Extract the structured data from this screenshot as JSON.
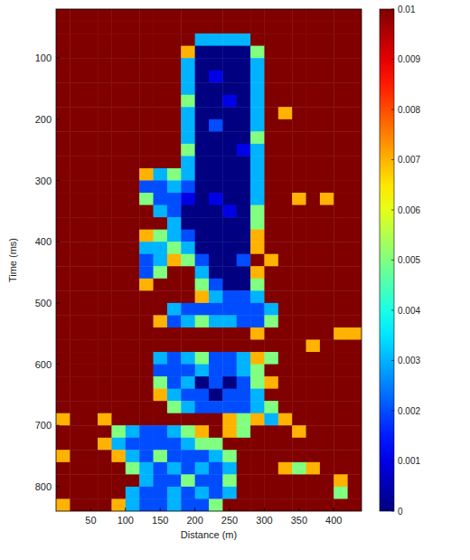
{
  "chart_data": {
    "type": "heatmap",
    "x_label": "Distance (m)",
    "y_label": "Time (ms)",
    "xlim": [
      0,
      440
    ],
    "ylim": [
      20,
      840
    ],
    "xticks": [
      50,
      100,
      150,
      200,
      250,
      300,
      350,
      400
    ],
    "yticks": [
      100,
      200,
      300,
      400,
      500,
      600,
      700,
      800
    ],
    "x": [
      10,
      30,
      50,
      70,
      90,
      110,
      130,
      150,
      170,
      190,
      210,
      230,
      250,
      270,
      290,
      310,
      330,
      350,
      370,
      390,
      410,
      430
    ],
    "y": [
      30,
      50,
      70,
      90,
      110,
      130,
      150,
      170,
      190,
      210,
      230,
      250,
      270,
      290,
      310,
      330,
      350,
      370,
      390,
      410,
      430,
      450,
      470,
      490,
      510,
      530,
      550,
      570,
      590,
      610,
      630,
      650,
      670,
      690,
      710,
      730,
      750,
      770,
      790,
      810,
      830
    ],
    "cells": [
      [
        0.01,
        0.01,
        0.01,
        0.01,
        0.01,
        0.01,
        0.01,
        0.01,
        0.01,
        0.01,
        0.01,
        0.01,
        0.01,
        0.01,
        0.01,
        0.01,
        0.01,
        0.01,
        0.01,
        0.01,
        0.01,
        0.01
      ],
      [
        0.01,
        0.01,
        0.01,
        0.01,
        0.01,
        0.01,
        0.01,
        0.01,
        0.01,
        0.01,
        0.01,
        0.01,
        0.01,
        0.01,
        0.01,
        0.01,
        0.01,
        0.01,
        0.01,
        0.01,
        0.01,
        0.01
      ],
      [
        0.01,
        0.01,
        0.01,
        0.01,
        0.01,
        0.01,
        0.01,
        0.01,
        0.01,
        0.01,
        0.003,
        0.003,
        0.003,
        0.003,
        0.01,
        0.01,
        0.01,
        0.01,
        0.01,
        0.01,
        0.01,
        0.01
      ],
      [
        0.01,
        0.01,
        0.01,
        0.01,
        0.01,
        0.01,
        0.01,
        0.01,
        0.01,
        0.007,
        0,
        0,
        0,
        0,
        0.005,
        0.01,
        0.01,
        0.01,
        0.01,
        0.01,
        0.01,
        0.01
      ],
      [
        0.01,
        0.01,
        0.01,
        0.01,
        0.01,
        0.01,
        0.01,
        0.01,
        0.01,
        0.003,
        0,
        0,
        0,
        0,
        0.003,
        0.01,
        0.01,
        0.01,
        0.01,
        0.01,
        0.01,
        0.01
      ],
      [
        0.01,
        0.01,
        0.01,
        0.01,
        0.01,
        0.01,
        0.01,
        0.01,
        0.01,
        0.003,
        0,
        0.001,
        0,
        0,
        0.003,
        0.01,
        0.01,
        0.01,
        0.01,
        0.01,
        0.01,
        0.01
      ],
      [
        0.01,
        0.01,
        0.01,
        0.01,
        0.01,
        0.01,
        0.01,
        0.01,
        0.01,
        0.003,
        0,
        0,
        0,
        0,
        0.003,
        0.01,
        0.01,
        0.01,
        0.01,
        0.01,
        0.01,
        0.01
      ],
      [
        0.01,
        0.01,
        0.01,
        0.01,
        0.01,
        0.01,
        0.01,
        0.01,
        0.01,
        0.005,
        0,
        0,
        0.001,
        0,
        0.003,
        0.01,
        0.01,
        0.01,
        0.01,
        0.01,
        0.01,
        0.01
      ],
      [
        0.01,
        0.01,
        0.01,
        0.01,
        0.01,
        0.01,
        0.01,
        0.01,
        0.01,
        0.003,
        0,
        0,
        0,
        0,
        0.003,
        0.01,
        0.007,
        0.01,
        0.01,
        0.01,
        0.01,
        0.01
      ],
      [
        0.01,
        0.01,
        0.01,
        0.01,
        0.01,
        0.01,
        0.01,
        0.01,
        0.01,
        0.003,
        0,
        0.002,
        0,
        0,
        0.003,
        0.01,
        0.01,
        0.01,
        0.01,
        0.01,
        0.01,
        0.01
      ],
      [
        0.01,
        0.01,
        0.01,
        0.01,
        0.01,
        0.01,
        0.01,
        0.01,
        0.01,
        0.003,
        0,
        0,
        0,
        0,
        0.005,
        0.01,
        0.01,
        0.01,
        0.01,
        0.01,
        0.01,
        0.01
      ],
      [
        0.01,
        0.01,
        0.01,
        0.01,
        0.01,
        0.01,
        0.01,
        0.01,
        0.01,
        0.005,
        0,
        0,
        0,
        0.001,
        0.003,
        0.01,
        0.01,
        0.01,
        0.01,
        0.01,
        0.01,
        0.01
      ],
      [
        0.01,
        0.01,
        0.01,
        0.01,
        0.01,
        0.01,
        0.01,
        0.01,
        0.01,
        0.003,
        0,
        0,
        0,
        0,
        0.003,
        0.01,
        0.01,
        0.01,
        0.01,
        0.01,
        0.01,
        0.01
      ],
      [
        0.01,
        0.01,
        0.01,
        0.01,
        0.01,
        0.01,
        0.007,
        0.003,
        0.005,
        0.003,
        0,
        0,
        0,
        0,
        0.003,
        0.01,
        0.01,
        0.01,
        0.01,
        0.01,
        0.01,
        0.01
      ],
      [
        0.01,
        0.01,
        0.01,
        0.01,
        0.01,
        0.01,
        0.002,
        0.002,
        0.003,
        0.002,
        0,
        0,
        0,
        0,
        0.003,
        0.01,
        0.01,
        0.01,
        0.01,
        0.01,
        0.01,
        0.01
      ],
      [
        0.01,
        0.01,
        0.01,
        0.01,
        0.01,
        0.01,
        0.005,
        0.002,
        0.002,
        0.001,
        0,
        0.001,
        0,
        0,
        0.003,
        0.01,
        0.01,
        0.007,
        0.01,
        0.007,
        0.01,
        0.01
      ],
      [
        0.01,
        0.01,
        0.01,
        0.01,
        0.01,
        0.01,
        0.01,
        0.003,
        0.002,
        0,
        0,
        0,
        0.001,
        0,
        0.005,
        0.01,
        0.01,
        0.01,
        0.01,
        0.01,
        0.01,
        0.01
      ],
      [
        0.01,
        0.01,
        0.01,
        0.01,
        0.01,
        0.01,
        0.01,
        0.01,
        0.003,
        0,
        0,
        0,
        0,
        0,
        0.005,
        0.01,
        0.01,
        0.01,
        0.01,
        0.01,
        0.01,
        0.01
      ],
      [
        0.01,
        0.01,
        0.01,
        0.01,
        0.01,
        0.01,
        0.007,
        0.005,
        0.003,
        0.002,
        0,
        0,
        0,
        0,
        0.007,
        0.01,
        0.01,
        0.01,
        0.01,
        0.01,
        0.01,
        0.01
      ],
      [
        0.01,
        0.01,
        0.01,
        0.01,
        0.01,
        0.01,
        0.003,
        0.003,
        0.005,
        0.003,
        0,
        0,
        0,
        0,
        0.007,
        0.01,
        0.01,
        0.01,
        0.01,
        0.01,
        0.01,
        0.01
      ],
      [
        0.01,
        0.01,
        0.01,
        0.01,
        0.01,
        0.01,
        0.002,
        0.003,
        0.007,
        0.005,
        0.002,
        0,
        0,
        0.002,
        0.01,
        0.007,
        0.01,
        0.01,
        0.01,
        0.01,
        0.01,
        0.01
      ],
      [
        0.01,
        0.01,
        0.01,
        0.01,
        0.01,
        0.01,
        0.002,
        0.005,
        0.01,
        0.01,
        0.003,
        0,
        0,
        0,
        0.007,
        0.01,
        0.01,
        0.01,
        0.01,
        0.01,
        0.01,
        0.01
      ],
      [
        0.01,
        0.01,
        0.01,
        0.01,
        0.01,
        0.01,
        0.007,
        0.01,
        0.01,
        0.01,
        0.005,
        0.002,
        0,
        0,
        0.005,
        0.01,
        0.01,
        0.01,
        0.01,
        0.01,
        0.01,
        0.01
      ],
      [
        0.01,
        0.01,
        0.01,
        0.01,
        0.01,
        0.01,
        0.01,
        0.01,
        0.01,
        0.01,
        0.007,
        0.003,
        0.002,
        0.002,
        0.003,
        0.01,
        0.01,
        0.01,
        0.01,
        0.01,
        0.01,
        0.01
      ],
      [
        0.01,
        0.01,
        0.01,
        0.01,
        0.01,
        0.01,
        0.01,
        0.01,
        0.003,
        0.002,
        0.002,
        0.002,
        0.002,
        0.002,
        0.002,
        0.003,
        0.01,
        0.01,
        0.01,
        0.01,
        0.01,
        0.01
      ],
      [
        0.01,
        0.01,
        0.01,
        0.01,
        0.01,
        0.01,
        0.01,
        0.007,
        0.002,
        0.003,
        0.005,
        0.003,
        0.003,
        0.002,
        0.002,
        0.005,
        0.01,
        0.01,
        0.01,
        0.01,
        0.01,
        0.01
      ],
      [
        0.01,
        0.01,
        0.01,
        0.01,
        0.01,
        0.01,
        0.01,
        0.01,
        0.01,
        0.01,
        0.01,
        0.01,
        0.01,
        0.01,
        0.007,
        0.01,
        0.01,
        0.01,
        0.01,
        0.01,
        0.007,
        0.007
      ],
      [
        0.01,
        0.01,
        0.01,
        0.01,
        0.01,
        0.01,
        0.01,
        0.01,
        0.01,
        0.01,
        0.01,
        0.01,
        0.01,
        0.01,
        0.01,
        0.01,
        0.01,
        0.01,
        0.007,
        0.01,
        0.01,
        0.01
      ],
      [
        0.01,
        0.01,
        0.01,
        0.01,
        0.01,
        0.01,
        0.01,
        0.003,
        0.002,
        0.003,
        0.005,
        0.002,
        0.002,
        0.003,
        0.007,
        0.005,
        0.01,
        0.01,
        0.01,
        0.01,
        0.01,
        0.01
      ],
      [
        0.01,
        0.01,
        0.01,
        0.01,
        0.01,
        0.01,
        0.01,
        0.002,
        0.002,
        0.002,
        0.003,
        0.002,
        0.002,
        0.003,
        0.005,
        0.01,
        0.01,
        0.01,
        0.01,
        0.01,
        0.01,
        0.01
      ],
      [
        0.01,
        0.01,
        0.01,
        0.01,
        0.01,
        0.01,
        0.01,
        0.005,
        0.002,
        0.003,
        0,
        0.002,
        0,
        0.002,
        0.005,
        0.007,
        0.01,
        0.01,
        0.01,
        0.01,
        0.01,
        0.01
      ],
      [
        0.01,
        0.01,
        0.01,
        0.01,
        0.01,
        0.01,
        0.01,
        0.007,
        0.003,
        0.002,
        0.002,
        0,
        0.002,
        0.002,
        0.003,
        0.01,
        0.01,
        0.01,
        0.01,
        0.01,
        0.01,
        0.01
      ],
      [
        0.01,
        0.01,
        0.01,
        0.01,
        0.01,
        0.01,
        0.01,
        0.01,
        0.005,
        0.003,
        0.002,
        0.002,
        0.002,
        0.002,
        0.003,
        0.005,
        0.01,
        0.01,
        0.01,
        0.01,
        0.01,
        0.01
      ],
      [
        0.007,
        0.01,
        0.01,
        0.007,
        0.01,
        0.01,
        0.01,
        0.01,
        0.01,
        0.01,
        0.01,
        0.01,
        0.007,
        0.005,
        0.007,
        0.003,
        0.007,
        0.01,
        0.01,
        0.01,
        0.01,
        0.01
      ],
      [
        0.01,
        0.01,
        0.01,
        0.01,
        0.005,
        0.003,
        0.002,
        0.002,
        0.003,
        0.005,
        0.007,
        0.01,
        0.007,
        0.005,
        0.01,
        0.01,
        0.01,
        0.007,
        0.01,
        0.01,
        0.01,
        0.01
      ],
      [
        0.01,
        0.01,
        0.01,
        0.007,
        0.003,
        0.002,
        0.002,
        0.002,
        0.002,
        0.003,
        0.005,
        0.005,
        0.01,
        0.01,
        0.01,
        0.01,
        0.01,
        0.01,
        0.01,
        0.01,
        0.01,
        0.01
      ],
      [
        0.007,
        0.01,
        0.01,
        0.01,
        0.007,
        0.003,
        0.002,
        0.005,
        0.002,
        0.002,
        0.002,
        0.003,
        0.005,
        0.01,
        0.01,
        0.01,
        0.01,
        0.01,
        0.01,
        0.01,
        0.01,
        0.01
      ],
      [
        0.01,
        0.01,
        0.01,
        0.01,
        0.01,
        0.005,
        0.003,
        0.002,
        0.003,
        0.002,
        0.003,
        0.002,
        0.003,
        0.01,
        0.01,
        0.01,
        0.007,
        0.005,
        0.007,
        0.01,
        0.01,
        0.01
      ],
      [
        0.01,
        0.01,
        0.01,
        0.01,
        0.01,
        0.01,
        0.003,
        0.002,
        0.002,
        0.005,
        0.002,
        0.002,
        0.005,
        0.01,
        0.01,
        0.01,
        0.01,
        0.01,
        0.01,
        0.01,
        0.007,
        0.01
      ],
      [
        0.01,
        0.01,
        0.01,
        0.01,
        0.01,
        0.003,
        0.002,
        0.002,
        0.003,
        0.002,
        0.003,
        0.002,
        0.003,
        0.01,
        0.01,
        0.01,
        0.01,
        0.01,
        0.01,
        0.01,
        0.005,
        0.01
      ],
      [
        0.007,
        0.01,
        0.01,
        0.01,
        0.007,
        0.003,
        0.002,
        0.002,
        0.003,
        0.002,
        0.002,
        0.005,
        0.01,
        0.01,
        0.01,
        0.01,
        0.01,
        0.01,
        0.01,
        0.01,
        0.01,
        0.01
      ]
    ],
    "colorbar": {
      "lim": [
        0,
        0.01
      ],
      "ticks": [
        0,
        0.001,
        0.002,
        0.003,
        0.004,
        0.005,
        0.006,
        0.007,
        0.008,
        0.009,
        0.01
      ]
    }
  }
}
